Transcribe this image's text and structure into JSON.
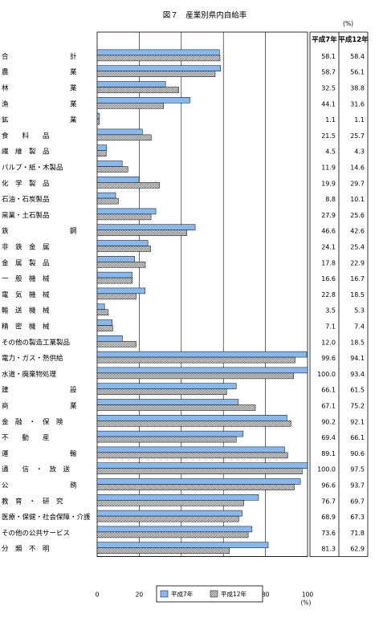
{
  "chart_data": {
    "type": "bar",
    "orientation": "horizontal",
    "title": "図７　産業別県内自給率",
    "unit_label": "(%)",
    "xlabel_unit": "(%)",
    "xlim": [
      0,
      100
    ],
    "xticks": [
      "0",
      "20",
      "40",
      "60",
      "80",
      "100"
    ],
    "grid": true,
    "legend_position": "bottom",
    "table_headers": [
      "平成7年",
      "平成12年"
    ],
    "series": [
      {
        "name": "平成7年",
        "color": "#87b9f0",
        "pattern": "solid",
        "values": [
          58.1,
          58.7,
          32.5,
          44.1,
          1.1,
          21.5,
          4.5,
          11.9,
          19.9,
          8.8,
          27.9,
          46.6,
          24.1,
          17.8,
          16.6,
          22.8,
          3.5,
          7.1,
          12.0,
          99.6,
          100.0,
          66.1,
          67.1,
          90.2,
          69.4,
          89.1,
          100.0,
          96.6,
          76.7,
          68.9,
          73.6,
          81.3
        ]
      },
      {
        "name": "平成12年",
        "color": "#888888",
        "pattern": "checker",
        "values": [
          58.4,
          56.1,
          38.8,
          31.6,
          1.1,
          25.7,
          4.3,
          14.6,
          29.7,
          10.1,
          25.6,
          42.6,
          25.4,
          22.9,
          16.7,
          18.5,
          5.3,
          7.4,
          18.5,
          94.1,
          93.4,
          61.5,
          75.2,
          92.1,
          66.1,
          90.6,
          97.5,
          93.7,
          69.7,
          67.3,
          71.8,
          62.9
        ]
      }
    ],
    "categories": [
      "合　　　　　　　　　計",
      "農　　　　　　　　　業",
      "林　　　　　　　　　業",
      "漁　　　　　　　　　業",
      "鉱　　　　　　　　　業",
      "食　　料　　品",
      "繊　維　製　品",
      "パルプ・紙・木製品",
      "化　学　製　品",
      "石油・石炭製品",
      "窯業・土石製品",
      "鉄　　　　　　　　　鋼",
      "非　鉄　金　属",
      "金　属　製　品",
      "一　般　機　械",
      "電　気　機　械",
      "輸　送　機　械",
      "精　密　機　械",
      "その他の製造工業製品",
      "電力・ガス・熱供給",
      "水道・廃棄物処理",
      "建　　　　　　　　　設",
      "商　　　　　　　　　業",
      "金　融　・　保　険",
      "不　　動　　産",
      "運　　　　　　　　　輸",
      "通　　信　・　放　送",
      "公　　　　　　　　　務",
      "教　育　・　研　究",
      "医療・保健・社会保障・介護",
      "その他の公共サービス",
      "分　類　不　明"
    ],
    "value_labels_h7": [
      "58.1",
      "58.7",
      "32.5",
      "44.1",
      "1.1",
      "21.5",
      "4.5",
      "11.9",
      "19.9",
      "8.8",
      "27.9",
      "46.6",
      "24.1",
      "17.8",
      "16.6",
      "22.8",
      "3.5",
      "7.1",
      "12.0",
      "99.6",
      "100.0",
      "66.1",
      "67.1",
      "90.2",
      "69.4",
      "89.1",
      "100.0",
      "96.6",
      "76.7",
      "68.9",
      "73.6",
      "81.3"
    ],
    "value_labels_h12": [
      "58.4",
      "56.1",
      "38.8",
      "31.6",
      "1.1",
      "25.7",
      "4.3",
      "14.6",
      "29.7",
      "10.1",
      "25.6",
      "42.6",
      "25.4",
      "22.9",
      "16.7",
      "18.5",
      "5.3",
      "7.4",
      "18.5",
      "94.1",
      "93.4",
      "61.5",
      "75.2",
      "92.1",
      "66.1",
      "90.6",
      "97.5",
      "93.7",
      "69.7",
      "67.3",
      "71.8",
      "62.9"
    ]
  }
}
